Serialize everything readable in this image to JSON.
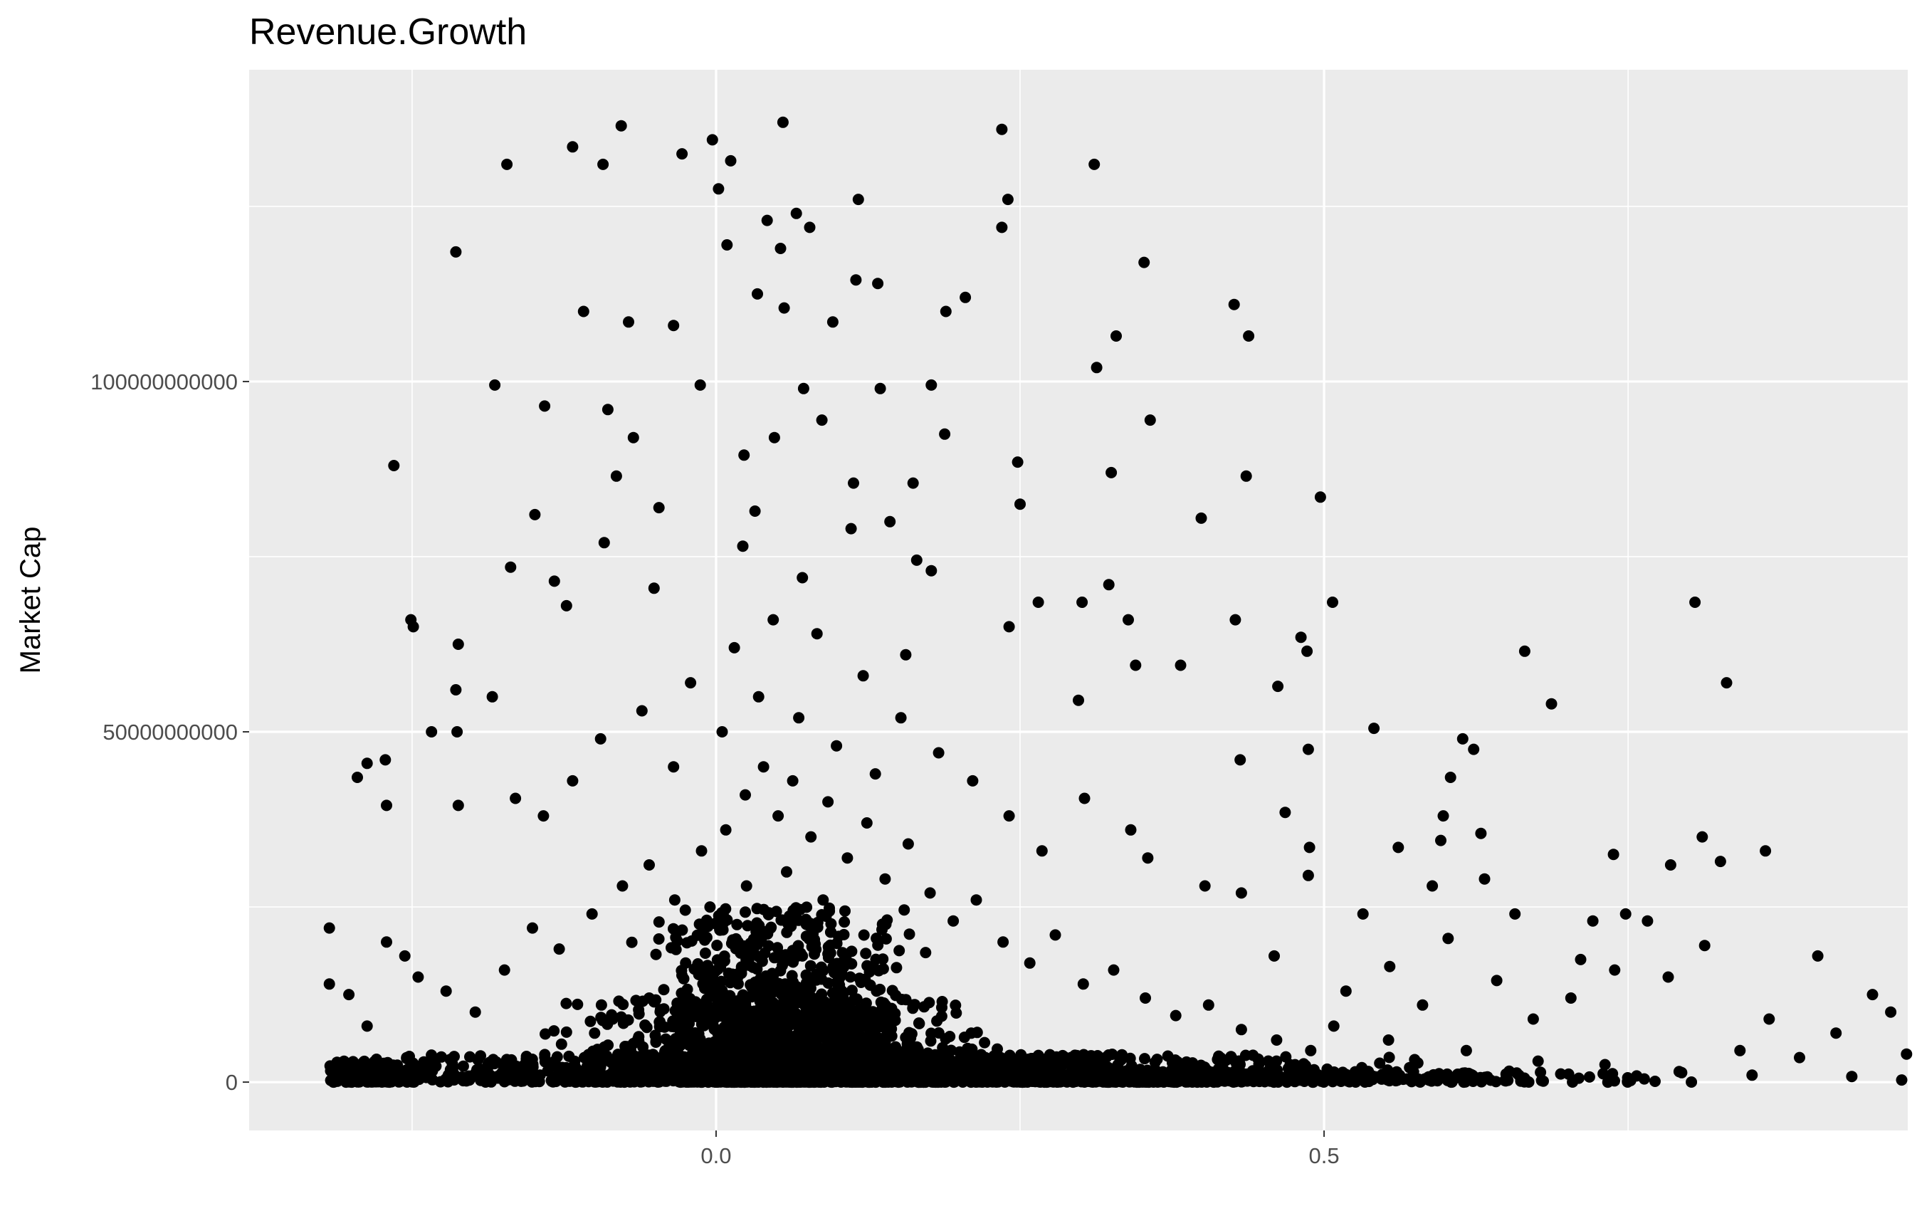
{
  "chart_data": {
    "type": "scatter",
    "title": "Revenue.Growth",
    "xlabel": "",
    "ylabel": "Market Cap",
    "xlim": [
      -0.384,
      0.98
    ],
    "ylim": [
      -6900000000,
      144500000000
    ],
    "x_ticks": [
      {
        "value": 0,
        "label": "0.0"
      },
      {
        "value": 0.5,
        "label": "0.5"
      }
    ],
    "x_minor_ticks": [
      -0.25,
      0.25,
      0.75
    ],
    "y_ticks": [
      {
        "value": 0,
        "label": "0"
      },
      {
        "value": 50000000000,
        "label": "50000000000"
      },
      {
        "value": 100000000000,
        "label": "100000000000"
      }
    ],
    "y_minor_ticks": [
      25000000000,
      75000000000,
      125000000000
    ],
    "grid": true,
    "legend": "none",
    "colors": {
      "panel": "#ebebeb",
      "grid": "#ffffff",
      "point": "#000000"
    },
    "points": [
      {
        "x": 0.055,
        "y": 137000000000
      },
      {
        "x": -0.078,
        "y": 136500000000
      },
      {
        "x": -0.003,
        "y": 134500000000
      },
      {
        "x": 0.235,
        "y": 136000000000
      },
      {
        "x": -0.118,
        "y": 133500000000
      },
      {
        "x": -0.028,
        "y": 132500000000
      },
      {
        "x": 0.012,
        "y": 131500000000
      },
      {
        "x": -0.172,
        "y": 131000000000
      },
      {
        "x": -0.093,
        "y": 131000000000
      },
      {
        "x": 0.311,
        "y": 131000000000
      },
      {
        "x": 0.002,
        "y": 127500000000
      },
      {
        "x": 0.117,
        "y": 126000000000
      },
      {
        "x": 0.24,
        "y": 126000000000
      },
      {
        "x": 0.066,
        "y": 124000000000
      },
      {
        "x": 0.042,
        "y": 123000000000
      },
      {
        "x": 0.235,
        "y": 122000000000
      },
      {
        "x": 0.077,
        "y": 122000000000
      },
      {
        "x": -0.214,
        "y": 118500000000
      },
      {
        "x": 0.009,
        "y": 119500000000
      },
      {
        "x": 0.053,
        "y": 119000000000
      },
      {
        "x": 0.352,
        "y": 117000000000
      },
      {
        "x": 0.115,
        "y": 114500000000
      },
      {
        "x": 0.133,
        "y": 114000000000
      },
      {
        "x": 0.034,
        "y": 112500000000
      },
      {
        "x": 0.205,
        "y": 112000000000
      },
      {
        "x": 0.426,
        "y": 111000000000
      },
      {
        "x": -0.109,
        "y": 110000000000
      },
      {
        "x": -0.072,
        "y": 108500000000
      },
      {
        "x": -0.035,
        "y": 108000000000
      },
      {
        "x": 0.056,
        "y": 110500000000
      },
      {
        "x": 0.189,
        "y": 110000000000
      },
      {
        "x": 0.438,
        "y": 106500000000
      },
      {
        "x": 0.096,
        "y": 108500000000
      },
      {
        "x": 0.329,
        "y": 106500000000
      },
      {
        "x": 0.313,
        "y": 102000000000
      },
      {
        "x": -0.013,
        "y": 99500000000
      },
      {
        "x": -0.182,
        "y": 99500000000
      },
      {
        "x": 0.177,
        "y": 99500000000
      },
      {
        "x": 0.072,
        "y": 99000000000
      },
      {
        "x": 0.135,
        "y": 99000000000
      },
      {
        "x": -0.141,
        "y": 96500000000
      },
      {
        "x": -0.089,
        "y": 96000000000
      },
      {
        "x": 0.357,
        "y": 94500000000
      },
      {
        "x": 0.087,
        "y": 94500000000
      },
      {
        "x": 0.188,
        "y": 92500000000
      },
      {
        "x": -0.068,
        "y": 92000000000
      },
      {
        "x": 0.048,
        "y": 92000000000
      },
      {
        "x": 0.023,
        "y": 89500000000
      },
      {
        "x": -0.265,
        "y": 88000000000
      },
      {
        "x": 0.248,
        "y": 88500000000
      },
      {
        "x": 0.325,
        "y": 87000000000
      },
      {
        "x": 0.436,
        "y": 86500000000
      },
      {
        "x": -0.082,
        "y": 86500000000
      },
      {
        "x": 0.113,
        "y": 85500000000
      },
      {
        "x": 0.162,
        "y": 85500000000
      },
      {
        "x": 0.497,
        "y": 83500000000
      },
      {
        "x": 0.25,
        "y": 82500000000
      },
      {
        "x": -0.047,
        "y": 82000000000
      },
      {
        "x": 0.032,
        "y": 81500000000
      },
      {
        "x": 0.399,
        "y": 80500000000
      },
      {
        "x": -0.149,
        "y": 81000000000
      },
      {
        "x": 0.143,
        "y": 80000000000
      },
      {
        "x": -0.092,
        "y": 77000000000
      },
      {
        "x": 0.022,
        "y": 76500000000
      },
      {
        "x": 0.111,
        "y": 79000000000
      },
      {
        "x": -0.169,
        "y": 73500000000
      },
      {
        "x": 0.165,
        "y": 74500000000
      },
      {
        "x": 0.177,
        "y": 73000000000
      },
      {
        "x": -0.133,
        "y": 71500000000
      },
      {
        "x": 0.323,
        "y": 71000000000
      },
      {
        "x": 0.071,
        "y": 72000000000
      },
      {
        "x": -0.051,
        "y": 70500000000
      },
      {
        "x": 0.805,
        "y": 68500000000
      },
      {
        "x": 0.507,
        "y": 68500000000
      },
      {
        "x": 0.265,
        "y": 68500000000
      },
      {
        "x": 0.301,
        "y": 68500000000
      },
      {
        "x": -0.123,
        "y": 68000000000
      },
      {
        "x": -0.251,
        "y": 66000000000
      },
      {
        "x": 0.427,
        "y": 66000000000
      },
      {
        "x": 0.339,
        "y": 66000000000
      },
      {
        "x": -0.249,
        "y": 65000000000
      },
      {
        "x": 0.241,
        "y": 65000000000
      },
      {
        "x": -0.212,
        "y": 62500000000
      },
      {
        "x": 0.481,
        "y": 63500000000
      },
      {
        "x": 0.665,
        "y": 61500000000
      },
      {
        "x": 0.486,
        "y": 61500000000
      },
      {
        "x": 0.156,
        "y": 61000000000
      },
      {
        "x": 0.345,
        "y": 59500000000
      },
      {
        "x": 0.382,
        "y": 59500000000
      },
      {
        "x": 0.831,
        "y": 57000000000
      },
      {
        "x": -0.214,
        "y": 56000000000
      },
      {
        "x": 0.462,
        "y": 56500000000
      },
      {
        "x": 0.687,
        "y": 54000000000
      },
      {
        "x": -0.184,
        "y": 55000000000
      },
      {
        "x": 0.298,
        "y": 54500000000
      },
      {
        "x": -0.234,
        "y": 50000000000
      },
      {
        "x": -0.213,
        "y": 50000000000
      },
      {
        "x": 0.541,
        "y": 50500000000
      },
      {
        "x": 0.614,
        "y": 49000000000
      },
      {
        "x": 0.623,
        "y": 47500000000
      },
      {
        "x": 0.487,
        "y": 47500000000
      },
      {
        "x": 0.431,
        "y": 46000000000
      },
      {
        "x": -0.272,
        "y": 46000000000
      },
      {
        "x": -0.287,
        "y": 45500000000
      },
      {
        "x": 0.604,
        "y": 43500000000
      },
      {
        "x": -0.295,
        "y": 43500000000
      },
      {
        "x": -0.165,
        "y": 40500000000
      },
      {
        "x": -0.212,
        "y": 39500000000
      },
      {
        "x": -0.271,
        "y": 39500000000
      },
      {
        "x": 0.303,
        "y": 40500000000
      },
      {
        "x": 0.598,
        "y": 38000000000
      },
      {
        "x": 0.468,
        "y": 38500000000
      },
      {
        "x": 0.341,
        "y": 36000000000
      },
      {
        "x": 0.629,
        "y": 35500000000
      },
      {
        "x": 0.811,
        "y": 35000000000
      },
      {
        "x": 0.596,
        "y": 34500000000
      },
      {
        "x": 0.488,
        "y": 33500000000
      },
      {
        "x": 0.561,
        "y": 33500000000
      },
      {
        "x": 0.863,
        "y": 33000000000
      },
      {
        "x": 0.738,
        "y": 32500000000
      },
      {
        "x": 0.355,
        "y": 32000000000
      },
      {
        "x": 0.826,
        "y": 31500000000
      },
      {
        "x": 0.402,
        "y": 28000000000
      },
      {
        "x": 0.785,
        "y": 31000000000
      },
      {
        "x": 0.487,
        "y": 29500000000
      },
      {
        "x": 0.632,
        "y": 29000000000
      },
      {
        "x": 0.589,
        "y": 28000000000
      },
      {
        "x": 0.432,
        "y": 27000000000
      },
      {
        "x": 0.532,
        "y": 24000000000
      },
      {
        "x": 0.657,
        "y": 24000000000
      },
      {
        "x": 0.748,
        "y": 24000000000
      },
      {
        "x": 0.721,
        "y": 23000000000
      },
      {
        "x": 0.766,
        "y": 23000000000
      },
      {
        "x": -0.318,
        "y": 22000000000
      },
      {
        "x": -0.271,
        "y": 20000000000
      },
      {
        "x": 0.813,
        "y": 19500000000
      },
      {
        "x": 0.906,
        "y": 18000000000
      },
      {
        "x": 0.554,
        "y": 16500000000
      },
      {
        "x": 0.602,
        "y": 20500000000
      },
      {
        "x": 0.711,
        "y": 17500000000
      },
      {
        "x": 0.739,
        "y": 16000000000
      },
      {
        "x": 0.783,
        "y": 15000000000
      },
      {
        "x": 0.951,
        "y": 12500000000
      },
      {
        "x": 0.866,
        "y": 9000000000
      },
      {
        "x": 0.966,
        "y": 10000000000
      },
      {
        "x": 0.921,
        "y": 7000000000
      },
      {
        "x": 0.979,
        "y": 4000000000
      },
      {
        "x": 0.891,
        "y": 3500000000
      },
      {
        "x": 0.842,
        "y": 4500000000
      },
      {
        "x": 0.703,
        "y": 12000000000
      },
      {
        "x": 0.642,
        "y": 14500000000
      },
      {
        "x": 0.672,
        "y": 9000000000
      },
      {
        "x": 0.581,
        "y": 11000000000
      },
      {
        "x": 0.518,
        "y": 13000000000
      },
      {
        "x": 0.459,
        "y": 18000000000
      },
      {
        "x": 0.508,
        "y": 8000000000
      },
      {
        "x": 0.553,
        "y": 6000000000
      },
      {
        "x": 0.617,
        "y": 4500000000
      },
      {
        "x": 0.676,
        "y": 3000000000
      },
      {
        "x": 0.731,
        "y": 2500000000
      },
      {
        "x": 0.792,
        "y": 1500000000
      },
      {
        "x": 0.852,
        "y": 1000000000
      },
      {
        "x": 0.934,
        "y": 800000000
      },
      {
        "x": 0.975,
        "y": 300000000
      },
      {
        "x": -0.318,
        "y": 14000000000
      },
      {
        "x": -0.302,
        "y": 12500000000
      },
      {
        "x": -0.287,
        "y": 8000000000
      },
      {
        "x": -0.245,
        "y": 15000000000
      },
      {
        "x": -0.256,
        "y": 18000000000
      },
      {
        "x": -0.222,
        "y": 13000000000
      },
      {
        "x": -0.198,
        "y": 10000000000
      },
      {
        "x": -0.174,
        "y": 16000000000
      },
      {
        "x": -0.151,
        "y": 22000000000
      },
      {
        "x": -0.129,
        "y": 19000000000
      },
      {
        "x": -0.102,
        "y": 24000000000
      },
      {
        "x": -0.077,
        "y": 28000000000
      },
      {
        "x": -0.055,
        "y": 31000000000
      },
      {
        "x": -0.034,
        "y": 26000000000
      },
      {
        "x": -0.012,
        "y": 33000000000
      },
      {
        "x": 0.008,
        "y": 36000000000
      },
      {
        "x": 0.024,
        "y": 41000000000
      },
      {
        "x": 0.039,
        "y": 45000000000
      },
      {
        "x": 0.051,
        "y": 38000000000
      },
      {
        "x": 0.063,
        "y": 43000000000
      },
      {
        "x": 0.078,
        "y": 35000000000
      },
      {
        "x": 0.092,
        "y": 40000000000
      },
      {
        "x": 0.108,
        "y": 32000000000
      },
      {
        "x": 0.124,
        "y": 37000000000
      },
      {
        "x": 0.139,
        "y": 29000000000
      },
      {
        "x": 0.158,
        "y": 34000000000
      },
      {
        "x": 0.176,
        "y": 27000000000
      },
      {
        "x": 0.195,
        "y": 23000000000
      },
      {
        "x": 0.214,
        "y": 26000000000
      },
      {
        "x": 0.236,
        "y": 20000000000
      },
      {
        "x": 0.258,
        "y": 17000000000
      },
      {
        "x": 0.279,
        "y": 21000000000
      },
      {
        "x": 0.302,
        "y": 14000000000
      },
      {
        "x": 0.327,
        "y": 16000000000
      },
      {
        "x": 0.353,
        "y": 12000000000
      },
      {
        "x": 0.378,
        "y": 9500000000
      },
      {
        "x": 0.405,
        "y": 11000000000
      },
      {
        "x": 0.432,
        "y": 7500000000
      },
      {
        "x": 0.461,
        "y": 6000000000
      },
      {
        "x": 0.489,
        "y": 4500000000
      },
      {
        "x": -0.118,
        "y": 43000000000
      },
      {
        "x": -0.142,
        "y": 38000000000
      },
      {
        "x": -0.095,
        "y": 49000000000
      },
      {
        "x": -0.061,
        "y": 53000000000
      },
      {
        "x": -0.021,
        "y": 57000000000
      },
      {
        "x": 0.015,
        "y": 62000000000
      },
      {
        "x": 0.047,
        "y": 66000000000
      },
      {
        "x": 0.083,
        "y": 64000000000
      },
      {
        "x": 0.121,
        "y": 58000000000
      },
      {
        "x": 0.152,
        "y": 52000000000
      },
      {
        "x": 0.183,
        "y": 47000000000
      },
      {
        "x": 0.211,
        "y": 43000000000
      },
      {
        "x": 0.241,
        "y": 38000000000
      },
      {
        "x": 0.268,
        "y": 33000000000
      },
      {
        "x": -0.035,
        "y": 45000000000
      },
      {
        "x": 0.005,
        "y": 50000000000
      },
      {
        "x": 0.035,
        "y": 55000000000
      },
      {
        "x": 0.068,
        "y": 52000000000
      },
      {
        "x": 0.099,
        "y": 48000000000
      },
      {
        "x": 0.131,
        "y": 44000000000
      },
      {
        "x": -0.005,
        "y": 25000000000
      },
      {
        "x": 0.025,
        "y": 28000000000
      },
      {
        "x": 0.058,
        "y": 30000000000
      },
      {
        "x": 0.088,
        "y": 26000000000
      },
      {
        "x": 0.045,
        "y": 22000000000
      },
      {
        "x": 0.071,
        "y": 18000000000
      },
      {
        "x": 0.018,
        "y": 20000000000
      },
      {
        "x": -0.025,
        "y": 17000000000
      },
      {
        "x": 0.102,
        "y": 15000000000
      },
      {
        "x": 0.132,
        "y": 13000000000
      },
      {
        "x": 0.162,
        "y": 11000000000
      },
      {
        "x": -0.055,
        "y": 12000000000
      },
      {
        "x": -0.085,
        "y": 9000000000
      }
    ],
    "dense_clusters": [
      {
        "x_center": 0.05,
        "x_spread": 0.08,
        "y_max": 25000000000,
        "count": 900
      },
      {
        "x_center": 0.05,
        "x_spread": 0.13,
        "y_max": 12000000000,
        "count": 900
      },
      {
        "x_center": 0.1,
        "x_spread": 0.36,
        "y_max": 4000000000,
        "count": 1300
      },
      {
        "x_center": 0.3,
        "x_spread": 0.34,
        "y_max": 1500000000,
        "count": 900
      },
      {
        "x_center": -0.29,
        "x_spread": 0.04,
        "y_max": 3000000000,
        "count": 150
      }
    ]
  }
}
